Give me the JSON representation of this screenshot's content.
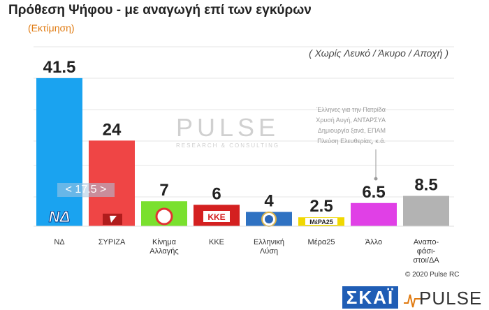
{
  "chart_data": {
    "type": "bar",
    "title": "Πρόθεση Ψήφου - με αναγωγή επί των εγκύρων",
    "subtitle": "(Εκτίμηση)",
    "note": "( Χωρίς Λευκό / Άκυρο / Αποχή )",
    "categories": [
      "ΝΔ",
      "ΣΥΡΙΖΑ",
      "Κίνημα Αλλαγής",
      "ΚΚΕ",
      "Ελληνική Λύση",
      "Μέρα25",
      "Άλλο",
      "Αναπο-φάσι-στοι/ΔΑ"
    ],
    "category_lines": [
      [
        "ΝΔ"
      ],
      [
        "ΣΥΡΙΖΑ"
      ],
      [
        "Κίνημα",
        "Αλλαγής"
      ],
      [
        "ΚΚΕ"
      ],
      [
        "Ελληνική",
        "Λύση"
      ],
      [
        "Μέρα25"
      ],
      [
        "Άλλο"
      ],
      [
        "Αναπο-",
        "φάσι-",
        "στοι/ΔΑ"
      ]
    ],
    "values": [
      41.5,
      24,
      7,
      6,
      4,
      2.5,
      6.5,
      8.5
    ],
    "value_labels": [
      "41.5",
      "24",
      "7",
      "6",
      "4",
      "2.5",
      "6.5",
      "8.5"
    ],
    "colors": [
      "#1aa3f0",
      "#ef4545",
      "#7ae02e",
      "#d42020",
      "#2f72c2",
      "#f0d800",
      "#e040e6",
      "#b3b3b3"
    ],
    "logo_labels": [
      "ΝΔ",
      "",
      "",
      "ΚΚΕ",
      "",
      "ΜέΡΑ25",
      "",
      ""
    ],
    "ylim": [
      0,
      45
    ],
    "grid": true,
    "reference_label": "< 17.5 >",
    "annotation_lines": [
      "Έλληνες για την Πατρίδα",
      "Χρυσή Αυγή, ΑΝΤΑΡΣΥΑ",
      "Δημιουργία ξανά, ΕΠΑΜ",
      "Πλεύση Ελευθερίας, κ.ά."
    ]
  },
  "watermark": {
    "big": "PULSE",
    "small": "RESEARCH & CONSULTING"
  },
  "copyright": "© 2020 Pulse RC",
  "footer": {
    "skai": "ΣΚΑΪ",
    "pulse": "PULSE"
  }
}
